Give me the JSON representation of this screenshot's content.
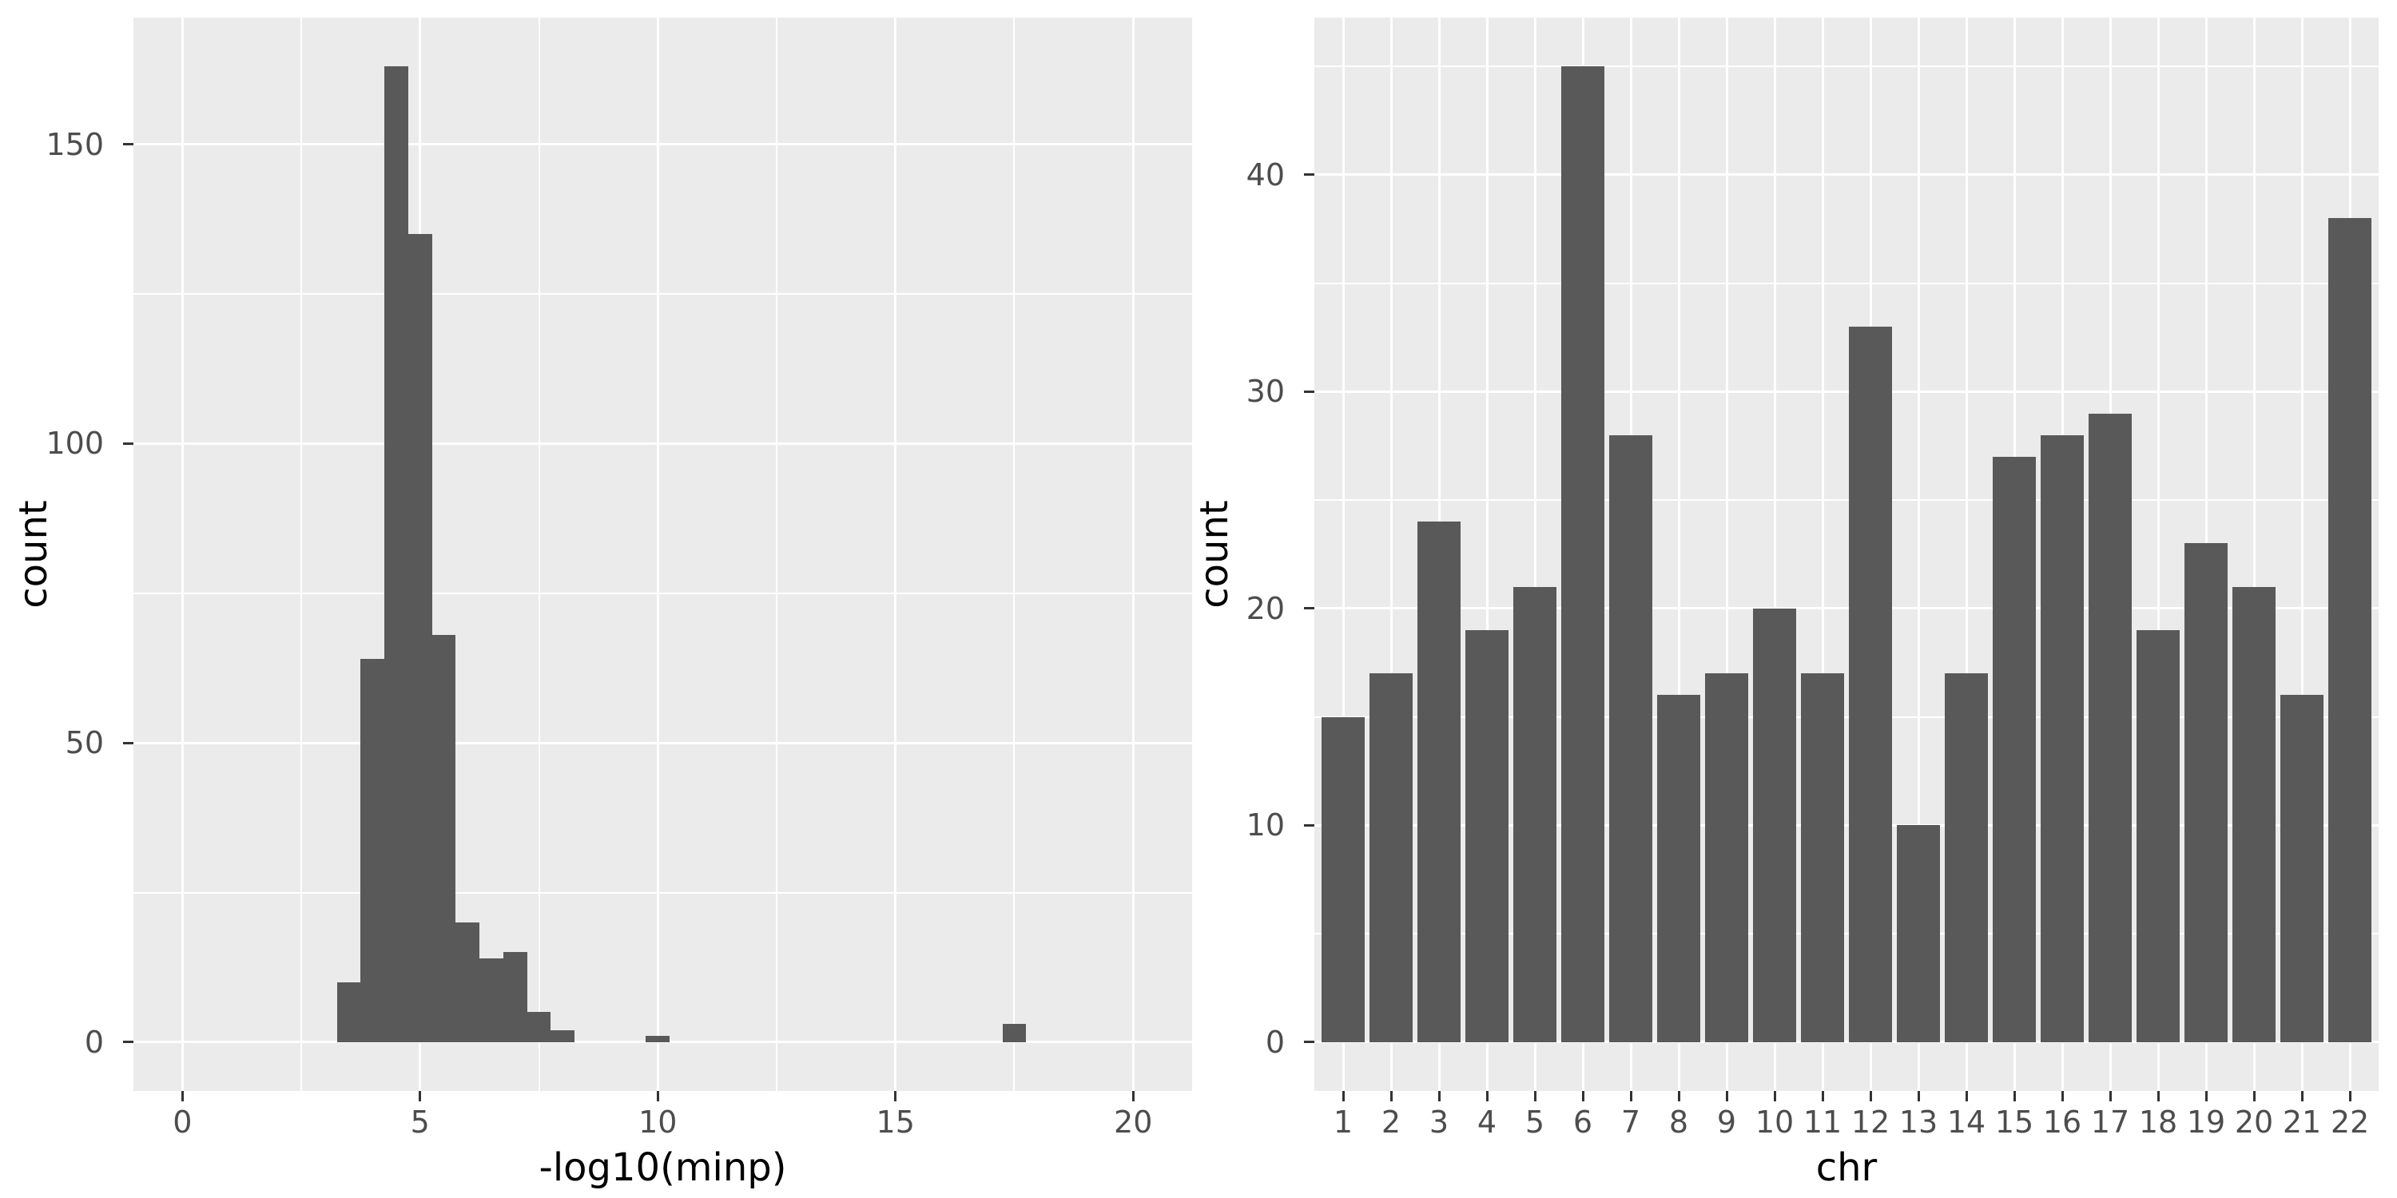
{
  "colors": {
    "page_background": "#FFFFFF",
    "panel_background": "#EBEBEB",
    "bar_fill": "#595959",
    "gridline": "#FFFFFF",
    "tick_mark": "#333333",
    "tick_label": "#4D4D4D",
    "axis_title": "#000000"
  },
  "chart_data": [
    {
      "type": "bar",
      "subtype": "histogram",
      "title": "",
      "xlabel": "-log10(minp)",
      "ylabel": "count",
      "legend": false,
      "grid": true,
      "xlim": [
        -1.03,
        21.24
      ],
      "ylim": [
        -8.15,
        171.15
      ],
      "x_ticks": {
        "values": [
          0,
          5,
          10,
          15,
          20
        ],
        "labels": [
          "0",
          "5",
          "10",
          "15",
          "20"
        ]
      },
      "x_minor": [
        2.5,
        7.5,
        12.5,
        17.5
      ],
      "y_ticks": {
        "values": [
          0,
          50,
          100,
          150
        ],
        "labels": [
          "0",
          "50",
          "100",
          "150"
        ]
      },
      "y_minor": [
        25,
        75,
        125
      ],
      "binwidth": 0.5,
      "bins": [
        {
          "x0": 3.25,
          "x1": 3.75,
          "count": 10
        },
        {
          "x0": 3.75,
          "x1": 4.25,
          "count": 64
        },
        {
          "x0": 4.25,
          "x1": 4.75,
          "count": 163
        },
        {
          "x0": 4.75,
          "x1": 5.25,
          "count": 135
        },
        {
          "x0": 5.25,
          "x1": 5.75,
          "count": 68
        },
        {
          "x0": 5.75,
          "x1": 6.25,
          "count": 20
        },
        {
          "x0": 6.25,
          "x1": 6.75,
          "count": 14
        },
        {
          "x0": 6.75,
          "x1": 7.25,
          "count": 15
        },
        {
          "x0": 7.25,
          "x1": 7.75,
          "count": 5
        },
        {
          "x0": 7.75,
          "x1": 8.25,
          "count": 2
        },
        {
          "x0": 9.75,
          "x1": 10.25,
          "count": 1
        },
        {
          "x0": 17.25,
          "x1": 17.75,
          "count": 3
        }
      ]
    },
    {
      "type": "bar",
      "title": "",
      "xlabel": "chr",
      "ylabel": "count",
      "legend": false,
      "grid": true,
      "categories": [
        "1",
        "2",
        "3",
        "4",
        "5",
        "6",
        "7",
        "8",
        "9",
        "10",
        "11",
        "12",
        "13",
        "14",
        "15",
        "16",
        "17",
        "18",
        "19",
        "20",
        "21",
        "22"
      ],
      "values": [
        15,
        17,
        24,
        19,
        21,
        45,
        28,
        16,
        17,
        20,
        17,
        33,
        10,
        17,
        27,
        28,
        29,
        19,
        23,
        21,
        16,
        38
      ],
      "ylim": [
        -2.25,
        47.25
      ],
      "y_ticks": {
        "values": [
          0,
          10,
          20,
          30,
          40
        ],
        "labels": [
          "0",
          "10",
          "20",
          "30",
          "40"
        ]
      },
      "y_minor": [
        5,
        15,
        25,
        35,
        45
      ],
      "bar_width": 0.9
    }
  ]
}
